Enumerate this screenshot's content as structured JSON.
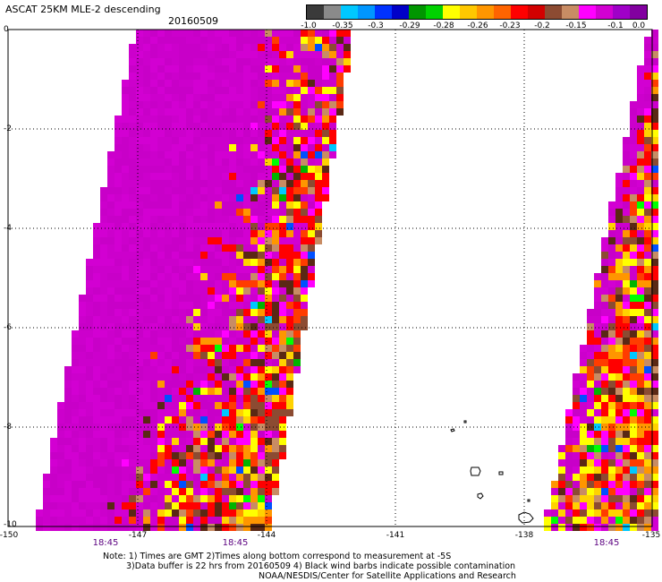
{
  "title": "ASCAT 25KM MLE-2 descending",
  "date": "20160509",
  "colorbar": {
    "labels": [
      "-1.0",
      "-0.35",
      "-0.3",
      "-0.29",
      "-0.28",
      "-0.26",
      "-0.23",
      "-0.2",
      "-0.15",
      "-0.1",
      "0.0"
    ],
    "colors": [
      "#3a3a3a",
      "#8a8a8a",
      "#00c8ff",
      "#0096ff",
      "#0032ff",
      "#0000c8",
      "#009600",
      "#00d200",
      "#ffff00",
      "#ffc800",
      "#ff9600",
      "#ff6400",
      "#ff0000",
      "#d20000",
      "#8c4b32",
      "#c88c64",
      "#ff00ff",
      "#d200d2",
      "#a000c8",
      "#8200a0"
    ]
  },
  "axes": {
    "y_ticks": [
      "0",
      "-2",
      "-4",
      "-6",
      "-8",
      "-10"
    ],
    "x_ticks": [
      "-150",
      "-147",
      "-144",
      "-141",
      "-138",
      "-135"
    ]
  },
  "times": [
    "18:45",
    "18:45",
    "18:45"
  ],
  "notes": {
    "line1": "Note: 1) Times are GMT 2)Times along bottom correspond to measurement at -5S",
    "line2": "3)Data buffer is 22 hrs from 20160509 4) Black wind barbs indicate possible contamination",
    "line3": "NOAA/NESDIS/Center for Satellite Applications and Research"
  }
}
